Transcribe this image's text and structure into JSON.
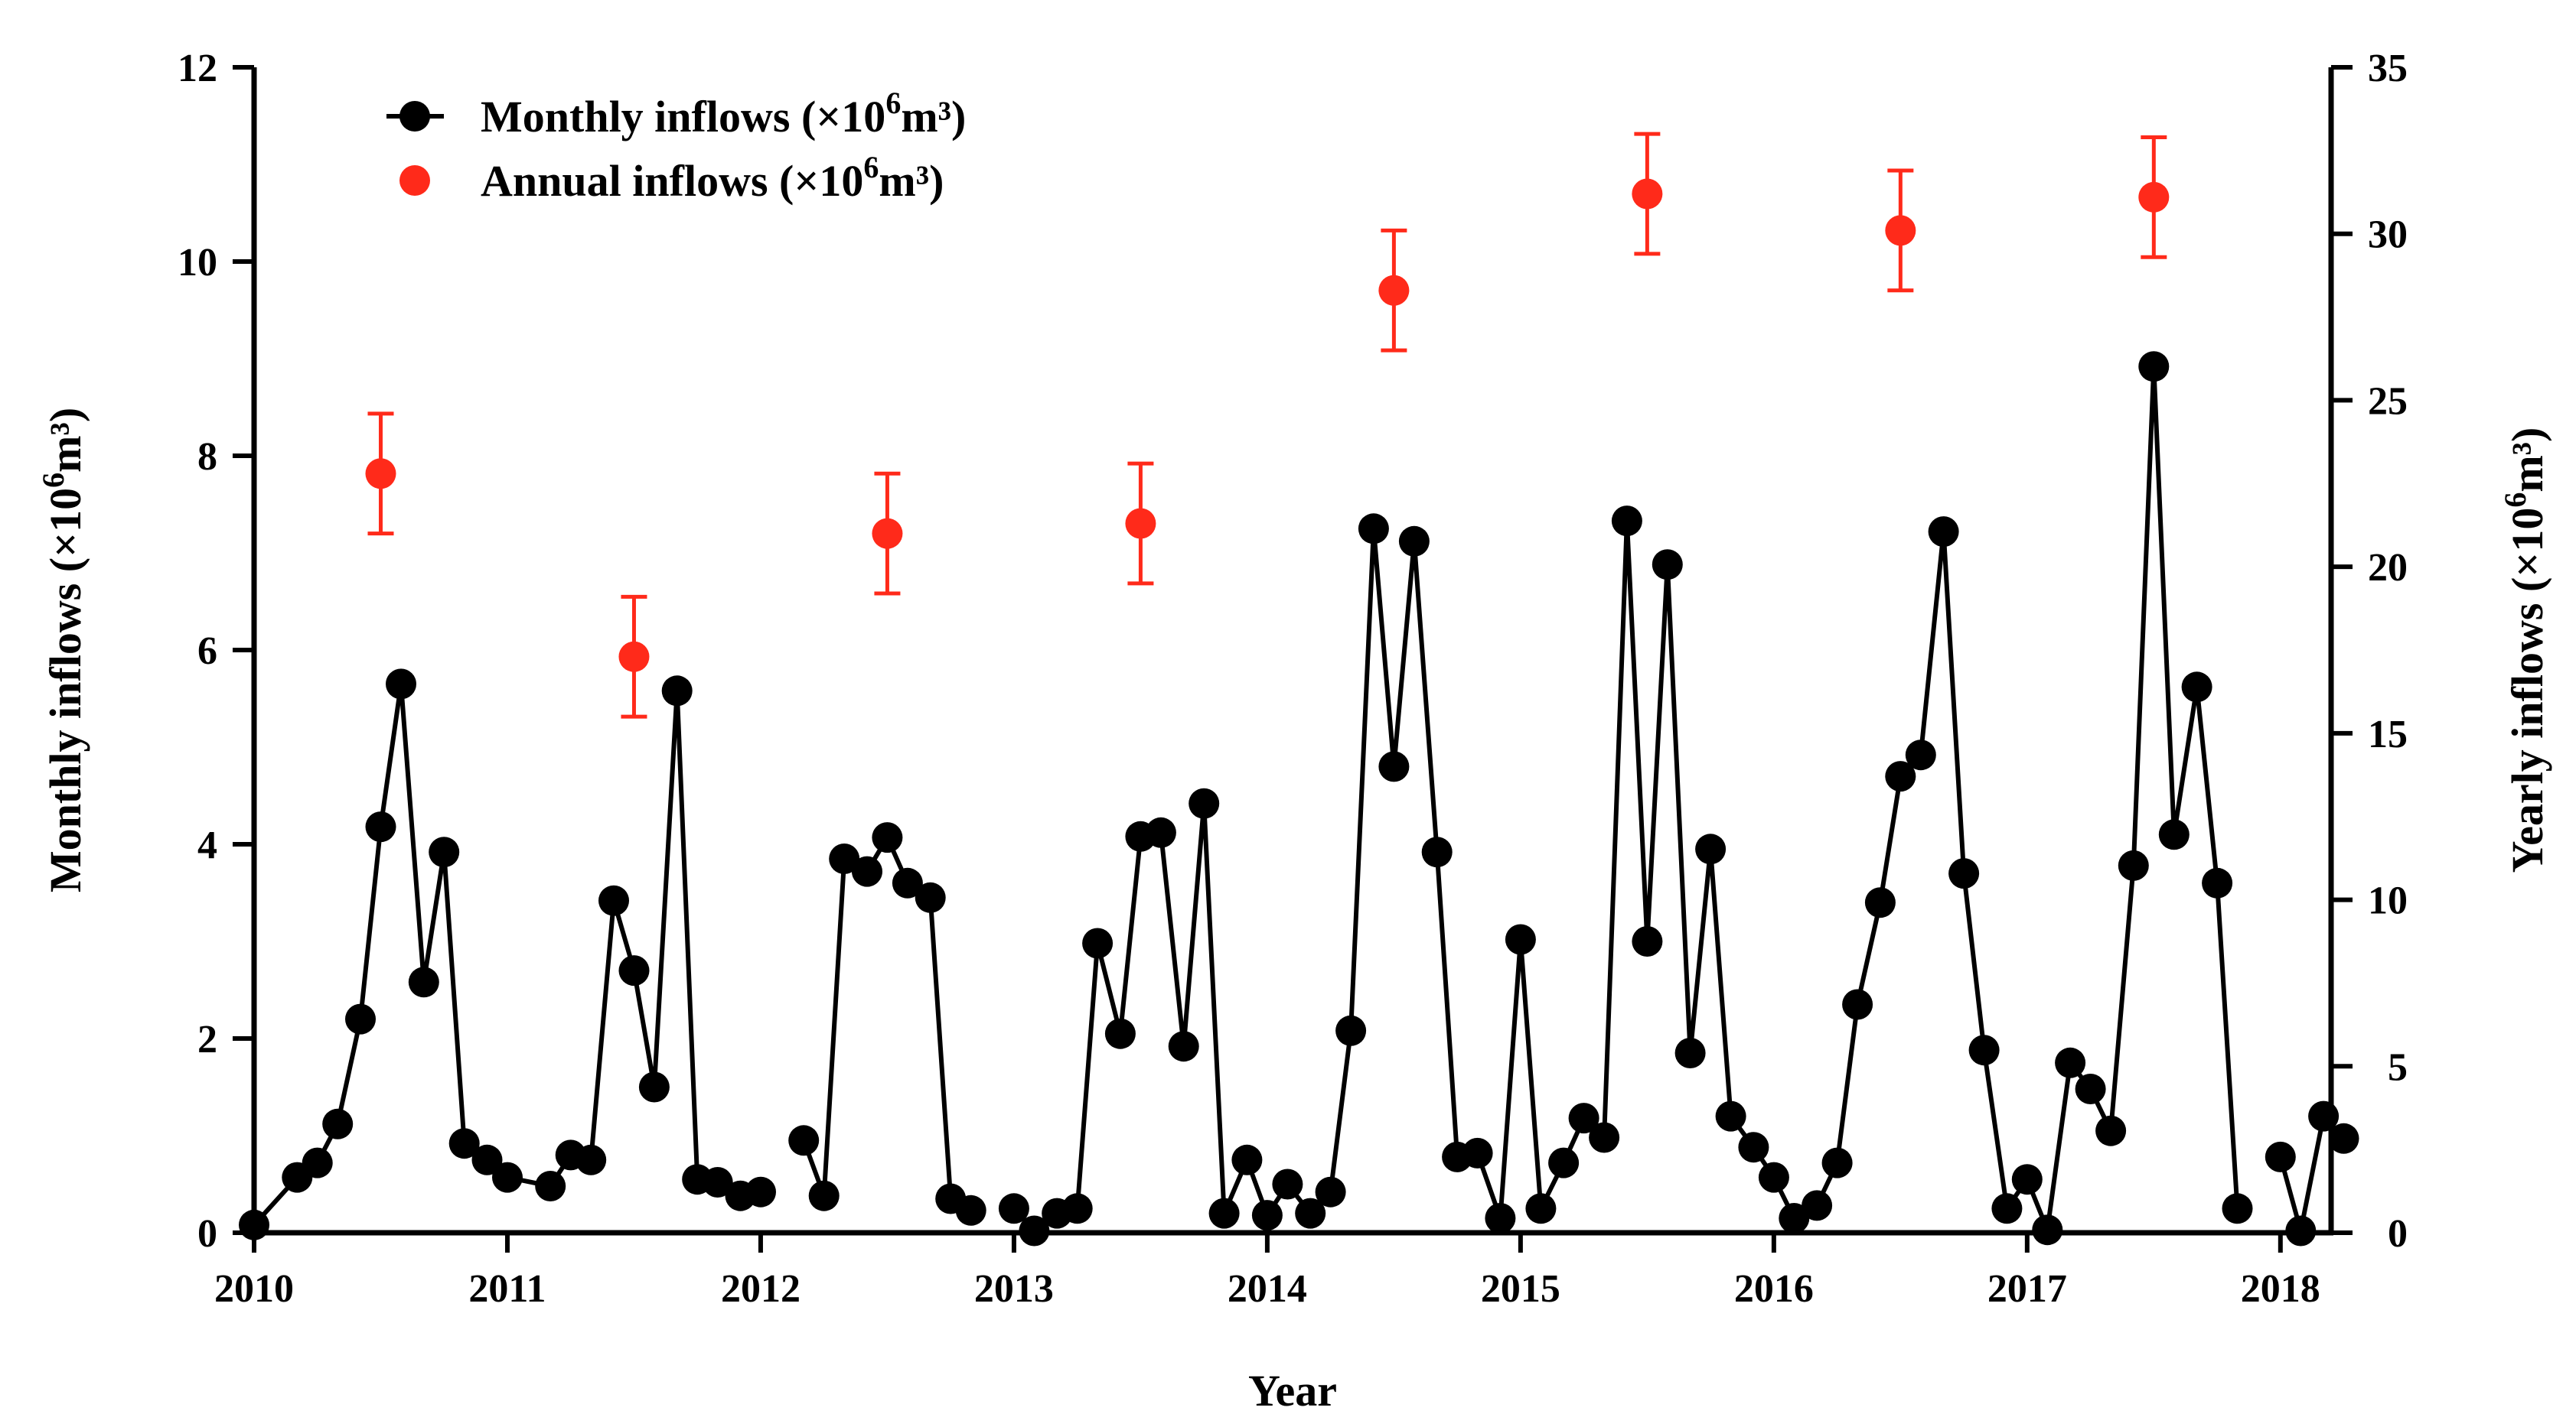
{
  "chart_data": {
    "type": "scatter",
    "xlabel": "Year",
    "ylabel_left": {
      "prefix": "Monthly inflows (×10",
      "sup": "6",
      "suffix": "m³)"
    },
    "ylabel_right": {
      "prefix": "Yearly inflows (×10",
      "sup": "6",
      "suffix": "m³)"
    },
    "xlim": [
      2010,
      2018.2
    ],
    "ylim_left": [
      0,
      12
    ],
    "ylim_right": [
      0,
      35
    ],
    "x_ticks": [
      "2010",
      "2011",
      "2012",
      "2013",
      "2014",
      "2015",
      "2016",
      "2017",
      "2018"
    ],
    "y_ticks_left": [
      "0",
      "2",
      "4",
      "6",
      "8",
      "10",
      "12"
    ],
    "y_ticks_right": [
      "0",
      "5",
      "10",
      "15",
      "20",
      "25",
      "30",
      "35"
    ],
    "legend": [
      {
        "prefix": "Monthly inflows (×10",
        "sup": "6",
        "suffix": "m³)",
        "marker": "line-dot",
        "color": "#000000"
      },
      {
        "prefix": "Annual inflows (×10",
        "sup": "6",
        "suffix": "m³)",
        "marker": "dot",
        "color": "#ff2a1a"
      }
    ],
    "series": [
      {
        "name": "Monthly inflows",
        "axis": "left",
        "color": "#000000",
        "segments": [
          [
            [
              2010.0,
              0.08
            ],
            [
              2010.17,
              0.57
            ],
            [
              2010.25,
              0.72
            ],
            [
              2010.33,
              1.12
            ],
            [
              2010.42,
              2.2
            ],
            [
              2010.5,
              4.18
            ],
            [
              2010.58,
              5.65
            ],
            [
              2010.67,
              2.58
            ],
            [
              2010.75,
              3.92
            ],
            [
              2010.83,
              0.92
            ],
            [
              2010.92,
              0.75
            ],
            [
              2011.0,
              0.57
            ],
            [
              2011.17,
              0.48
            ],
            [
              2011.25,
              0.8
            ],
            [
              2011.33,
              0.75
            ],
            [
              2011.42,
              3.42
            ],
            [
              2011.5,
              2.7
            ],
            [
              2011.58,
              1.5
            ],
            [
              2011.67,
              5.58
            ],
            [
              2011.75,
              0.55
            ],
            [
              2011.83,
              0.52
            ],
            [
              2011.92,
              0.38
            ],
            [
              2012.0,
              0.42
            ]
          ],
          [
            [
              2012.17,
              0.95
            ],
            [
              2012.25,
              0.38
            ],
            [
              2012.33,
              3.85
            ],
            [
              2012.42,
              3.72
            ],
            [
              2012.5,
              4.07
            ],
            [
              2012.58,
              3.6
            ],
            [
              2012.67,
              3.45
            ],
            [
              2012.75,
              0.35
            ],
            [
              2012.83,
              0.23
            ]
          ],
          [
            [
              2013.0,
              0.25
            ],
            [
              2013.08,
              0.02
            ],
            [
              2013.17,
              0.2
            ],
            [
              2013.25,
              0.25
            ],
            [
              2013.33,
              2.98
            ],
            [
              2013.42,
              2.05
            ],
            [
              2013.5,
              4.08
            ],
            [
              2013.58,
              4.12
            ],
            [
              2013.67,
              1.92
            ],
            [
              2013.75,
              4.42
            ],
            [
              2013.83,
              0.2
            ],
            [
              2013.92,
              0.75
            ],
            [
              2014.0,
              0.18
            ],
            [
              2014.08,
              0.5
            ],
            [
              2014.17,
              0.2
            ],
            [
              2014.25,
              0.42
            ],
            [
              2014.33,
              2.08
            ],
            [
              2014.42,
              7.25
            ],
            [
              2014.5,
              4.8
            ],
            [
              2014.58,
              7.12
            ],
            [
              2014.67,
              3.92
            ],
            [
              2014.75,
              0.78
            ],
            [
              2014.83,
              0.82
            ],
            [
              2014.92,
              0.15
            ],
            [
              2015.0,
              3.02
            ],
            [
              2015.08,
              0.25
            ],
            [
              2015.17,
              0.72
            ],
            [
              2015.25,
              1.18
            ],
            [
              2015.33,
              0.98
            ],
            [
              2015.42,
              7.33
            ],
            [
              2015.5,
              3.0
            ],
            [
              2015.58,
              6.88
            ],
            [
              2015.67,
              1.85
            ],
            [
              2015.75,
              3.95
            ],
            [
              2015.83,
              1.2
            ],
            [
              2015.92,
              0.88
            ],
            [
              2016.0,
              0.57
            ],
            [
              2016.08,
              0.15
            ],
            [
              2016.17,
              0.28
            ],
            [
              2016.25,
              0.72
            ],
            [
              2016.33,
              2.35
            ],
            [
              2016.42,
              3.4
            ],
            [
              2016.5,
              4.7
            ],
            [
              2016.58,
              4.92
            ],
            [
              2016.67,
              7.22
            ],
            [
              2016.75,
              3.7
            ],
            [
              2016.83,
              1.88
            ],
            [
              2016.92,
              0.25
            ],
            [
              2017.0,
              0.55
            ],
            [
              2017.08,
              0.03
            ],
            [
              2017.17,
              1.75
            ],
            [
              2017.25,
              1.48
            ],
            [
              2017.33,
              1.05
            ],
            [
              2017.42,
              3.78
            ],
            [
              2017.5,
              8.92
            ],
            [
              2017.58,
              4.1
            ],
            [
              2017.67,
              5.62
            ],
            [
              2017.75,
              3.6
            ],
            [
              2017.83,
              0.25
            ]
          ],
          [
            [
              2018.0,
              0.78
            ],
            [
              2018.08,
              0.02
            ],
            [
              2018.17,
              1.2
            ],
            [
              2018.25,
              0.97
            ]
          ]
        ]
      },
      {
        "name": "Annual inflows",
        "axis": "right",
        "color": "#ff2a1a",
        "points": [
          {
            "x": 2010.5,
            "y": 22.8,
            "err_low": 21.0,
            "err_high": 24.6
          },
          {
            "x": 2011.5,
            "y": 17.3,
            "err_low": 15.5,
            "err_high": 19.1
          },
          {
            "x": 2012.5,
            "y": 21.0,
            "err_low": 19.2,
            "err_high": 22.8
          },
          {
            "x": 2013.5,
            "y": 21.3,
            "err_low": 19.5,
            "err_high": 23.1
          },
          {
            "x": 2014.5,
            "y": 28.3,
            "err_low": 26.5,
            "err_high": 30.1
          },
          {
            "x": 2015.5,
            "y": 31.2,
            "err_low": 29.4,
            "err_high": 33.0
          },
          {
            "x": 2016.5,
            "y": 30.1,
            "err_low": 28.3,
            "err_high": 31.9
          },
          {
            "x": 2017.5,
            "y": 31.1,
            "err_low": 29.3,
            "err_high": 32.9
          }
        ]
      }
    ]
  }
}
